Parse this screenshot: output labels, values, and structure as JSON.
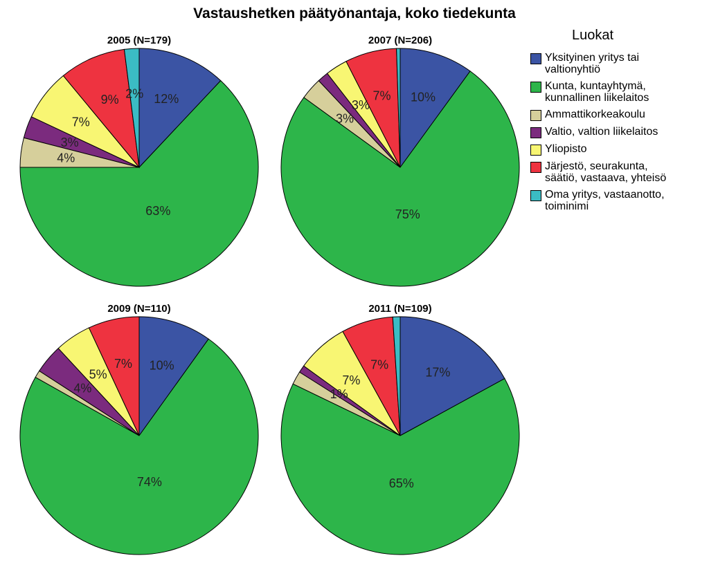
{
  "title": "Vastaushetken päätyönantaja, koko tiedekunta",
  "legend": {
    "title": "Luokat",
    "items": [
      {
        "label": "Yksityinen yritys tai\nvaltionyhtiö",
        "color": "#3b54a4"
      },
      {
        "label": "Kunta, kuntayhtymä,\nkunnallinen liikelaitos",
        "color": "#2db54a"
      },
      {
        "label": "Ammattikorkeakoulu",
        "color": "#d6cf9b"
      },
      {
        "label": "Valtio, valtion liikelaitos",
        "color": "#7b2b7e"
      },
      {
        "label": "Yliopisto",
        "color": "#f8f673"
      },
      {
        "label": "Järjestö, seurakunta,\nsäätiö, vastaava, yhteisö",
        "color": "#ee3340"
      },
      {
        "label": "Oma yritys, vastaanotto,\ntoiminimi",
        "color": "#3bbcc4"
      }
    ]
  },
  "chart_data": [
    {
      "type": "pie",
      "title": "2005 (N=179)",
      "categories": [
        "Yksityinen yritys tai valtionyhtiö",
        "Kunta, kuntayhtymä, kunnallinen liikelaitos",
        "Ammattikorkeakoulu",
        "Valtio, valtion liikelaitos",
        "Yliopisto",
        "Järjestö, seurakunta, säätiö, vastaava, yhteisö",
        "Oma yritys, vastaanotto, toiminimi"
      ],
      "values": [
        12,
        63,
        4,
        3,
        7,
        9,
        2
      ],
      "labels": [
        "12%",
        "63%",
        "4%",
        "3%",
        "7%",
        "9%",
        "2%"
      ]
    },
    {
      "type": "pie",
      "title": "2007 (N=206)",
      "categories": [
        "Yksityinen yritys tai valtionyhtiö",
        "Kunta, kuntayhtymä, kunnallinen liikelaitos",
        "Ammattikorkeakoulu",
        "Valtio, valtion liikelaitos",
        "Yliopisto",
        "Järjestö, seurakunta, säätiö, vastaava, yhteisö",
        "Oma yritys, vastaanotto, toiminimi"
      ],
      "values": [
        10,
        75,
        3,
        1.5,
        3,
        7,
        0.5
      ],
      "labels": [
        "10%",
        "75%",
        "3%",
        "",
        "3%",
        "7%",
        ""
      ]
    },
    {
      "type": "pie",
      "title": "2009 (N=110)",
      "categories": [
        "Yksityinen yritys tai valtionyhtiö",
        "Kunta, kuntayhtymä, kunnallinen liikelaitos",
        "Ammattikorkeakoulu",
        "Valtio, valtion liikelaitos",
        "Yliopisto",
        "Järjestö, seurakunta, säätiö, vastaava, yhteisö",
        "Oma yritys, vastaanotto, toiminimi"
      ],
      "values": [
        10,
        74,
        1,
        4,
        5,
        7,
        0
      ],
      "labels": [
        "10%",
        "74%",
        "",
        "4%",
        "5%",
        "7%",
        ""
      ]
    },
    {
      "type": "pie",
      "title": "2011 (N=109)",
      "categories": [
        "Yksityinen yritys tai valtionyhtiö",
        "Kunta, kuntayhtymä, kunnallinen liikelaitos",
        "Ammattikorkeakoulu",
        "Valtio, valtion liikelaitos",
        "Yliopisto",
        "Järjestö, seurakunta, säätiö, vastaava, yhteisö",
        "Oma yritys, vastaanotto, toiminimi"
      ],
      "values": [
        17,
        65,
        1.8,
        1,
        7,
        7,
        1
      ],
      "labels": [
        "17%",
        "65%",
        "",
        "1%",
        "7%",
        "7%",
        ""
      ]
    }
  ]
}
